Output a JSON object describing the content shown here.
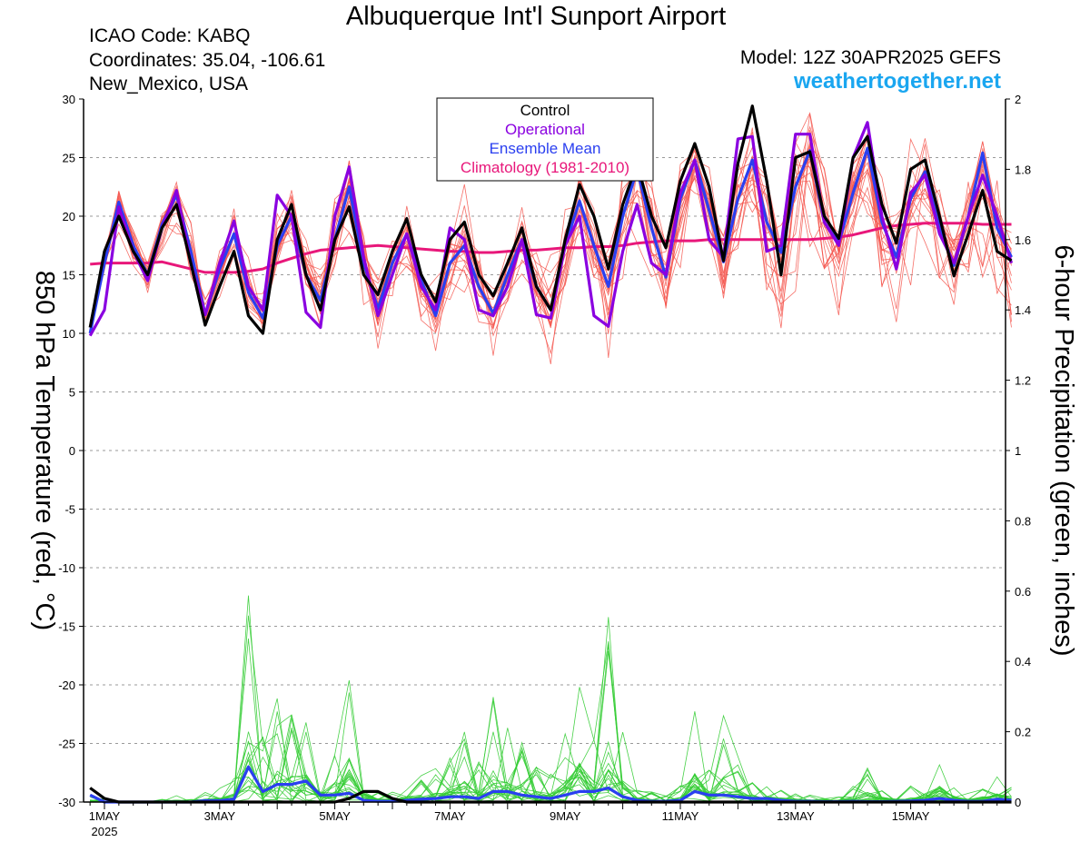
{
  "header": {
    "title": "Albuquerque Int'l Sunport Airport",
    "icao": "ICAO Code: KABQ",
    "coordinates": "Coordinates: 35.04, -106.61",
    "location": "New_Mexico, USA",
    "model": "Model: 12Z 30APR2025 GEFS",
    "website": "weathertogether.net"
  },
  "chart_data": {
    "type": "line",
    "title": "Albuquerque Int'l Sunport Airport",
    "ylabel_left": "850 hPa Temperature (red, °C)",
    "ylabel_right": "6-hour Precipitation (green, inches)",
    "ylim_left": [
      -30,
      30
    ],
    "ylim_right": [
      0,
      2
    ],
    "yticks_left": [
      "30",
      "25",
      "20",
      "15",
      "10",
      "5",
      "0",
      "-5",
      "-10",
      "-15",
      "-20",
      "-25",
      "-30"
    ],
    "yticks_right": [
      "2",
      "1.8",
      "1.6",
      "1.4",
      "1.2",
      "1",
      "0.8",
      "0.6",
      "0.4",
      "0.2",
      "0"
    ],
    "x_unit_note": "days after 1MAY 2025 00Z, 6-hour steps",
    "x_tick_labels": [
      {
        "label": "1MAY",
        "day": 0
      },
      {
        "label": "3MAY",
        "day": 2
      },
      {
        "label": "5MAY",
        "day": 4
      },
      {
        "label": "7MAY",
        "day": 6
      },
      {
        "label": "9MAY",
        "day": 8
      },
      {
        "label": "11MAY",
        "day": 10
      },
      {
        "label": "13MAY",
        "day": 12
      },
      {
        "label": "15MAY",
        "day": 14
      }
    ],
    "x_year_label": "2025",
    "grid": true,
    "legend": {
      "position": "top-center",
      "entries": [
        {
          "label": "Control",
          "color": "#000000"
        },
        {
          "label": "Operational",
          "color": "#8a00e0"
        },
        {
          "label": "Ensemble Mean",
          "color": "#2a3ff0"
        },
        {
          "label": "Climatology (1981-2010)",
          "color": "#e8177a"
        }
      ]
    },
    "x_start_day": -0.25,
    "x_step_days": 0.25,
    "series": [
      {
        "name": "Control",
        "color": "#000000",
        "values": [
          10.5,
          17,
          20,
          17,
          15,
          19,
          21,
          16,
          10.7,
          14,
          17,
          11.5,
          10,
          18,
          21,
          15,
          12,
          18,
          20.8,
          15,
          13.3,
          17,
          19.8,
          15,
          12.7,
          18,
          19.5,
          15,
          13.2,
          16,
          19,
          14,
          12,
          18,
          22.7,
          20,
          15.5,
          21,
          24.5,
          20,
          17.3,
          23,
          26.2,
          22.5,
          16.2,
          24.5,
          29.4,
          23,
          15,
          25,
          25.5,
          20,
          18.1,
          25,
          26.8,
          21,
          17.7,
          24,
          24.8,
          20,
          14.9,
          18.5,
          22.2,
          17,
          16.2
        ]
      },
      {
        "name": "Operational",
        "color": "#8a00e0",
        "values": [
          9.8,
          12,
          20.8,
          17,
          14.5,
          19,
          22.2,
          16,
          11.6,
          16,
          19.6,
          14,
          12,
          21.8,
          20,
          11.8,
          10.5,
          20,
          24.2,
          16.5,
          11.5,
          15,
          18.5,
          14,
          12,
          19,
          18,
          12,
          11.5,
          14,
          18,
          11.6,
          11.3,
          17.5,
          20,
          11.5,
          10.6,
          17,
          21,
          16,
          15,
          22,
          24.8,
          18,
          16.5,
          26.6,
          26.8,
          17,
          17.5,
          27,
          27,
          19.5,
          17.5,
          25,
          28,
          20,
          15.5,
          22,
          23.5,
          18.5,
          16,
          20,
          23.5,
          20,
          16
        ]
      },
      {
        "name": "Ensemble Mean",
        "color": "#2a3ff0",
        "values": [
          10,
          16,
          21.2,
          17.5,
          15,
          19.3,
          21.8,
          17,
          11.6,
          15.5,
          18.5,
          13.5,
          11.3,
          17.5,
          20,
          15,
          12.8,
          18,
          22.5,
          16,
          12.1,
          16,
          18.5,
          14.5,
          11.5,
          16,
          17.5,
          14,
          11.7,
          15,
          18,
          14,
          12,
          17.5,
          21.3,
          17.5,
          14,
          20,
          24,
          19,
          14.8,
          21.5,
          24.8,
          20.5,
          16.1,
          21.5,
          24.8,
          19.5,
          16.9,
          22.5,
          25.6,
          19.5,
          17.7,
          22,
          25.8,
          19.5,
          16.5,
          21.5,
          23.8,
          19,
          15.8,
          20,
          25.4,
          19,
          16.5
        ]
      },
      {
        "name": "Climatology (1981-2010)",
        "color": "#e8177a",
        "values": [
          15.9,
          16,
          16,
          16,
          16,
          16.1,
          15.8,
          15.5,
          15.2,
          15.2,
          15.2,
          15.3,
          15.5,
          16,
          16.4,
          16.8,
          17.1,
          17.2,
          17.3,
          17.4,
          17.5,
          17.4,
          17.3,
          17.2,
          17.1,
          17,
          17,
          16.9,
          16.9,
          17,
          17.1,
          17.1,
          17.2,
          17.3,
          17.3,
          17.4,
          17.4,
          17.5,
          17.7,
          17.8,
          17.9,
          17.9,
          17.9,
          18,
          18,
          18,
          18,
          18,
          18,
          18,
          18,
          18.1,
          18.2,
          18.4,
          18.7,
          19,
          19.2,
          19.3,
          19.4,
          19.4,
          19.4,
          19.4,
          19.3,
          19.3,
          19.3
        ]
      },
      {
        "name": "Control precipitation",
        "axis": "right",
        "color": "#000000",
        "values": [
          0.04,
          0.01,
          0,
          0,
          0,
          0,
          0,
          0,
          0,
          0,
          0,
          0,
          0,
          0,
          0,
          0,
          0,
          0,
          0.01,
          0.03,
          0.03,
          0.01,
          0,
          0,
          0,
          0,
          0,
          0,
          0,
          0,
          0,
          0,
          0,
          0,
          0,
          0,
          0,
          0,
          0,
          0,
          0,
          0,
          0,
          0,
          0,
          0,
          0,
          0,
          0,
          0,
          0,
          0,
          0,
          0,
          0,
          0,
          0,
          0,
          0,
          0,
          0,
          0,
          0,
          0,
          0
        ]
      },
      {
        "name": "Ensemble Mean precipitation",
        "axis": "right",
        "color": "#2a3ff0",
        "values": [
          0.02,
          0,
          0,
          0,
          0,
          0,
          0,
          0,
          0.004,
          0.004,
          0.008,
          0.1,
          0.03,
          0.05,
          0.05,
          0.06,
          0.02,
          0.02,
          0.025,
          0.005,
          0.002,
          0.002,
          0.005,
          0.008,
          0.01,
          0.015,
          0.015,
          0.01,
          0.03,
          0.03,
          0.02,
          0.015,
          0.01,
          0.02,
          0.03,
          0.03,
          0.04,
          0.015,
          0.005,
          0.002,
          0.002,
          0.005,
          0.03,
          0.02,
          0.02,
          0.015,
          0.01,
          0.01,
          0.005,
          0.002,
          0.002,
          0.001,
          0.001,
          0.002,
          0.001,
          0.001,
          0.002,
          0.003,
          0.005,
          0.01,
          0.005,
          0.002,
          0.002,
          0.008,
          0.005
        ]
      }
    ],
    "ensemble_temperature_members": {
      "color": "#f4564e",
      "member_count": 20,
      "spread_low": [
        10,
        14,
        17,
        15,
        13,
        16,
        18,
        13,
        10,
        12,
        15,
        11,
        9,
        15,
        17,
        11,
        9.5,
        15,
        17.5,
        12,
        6.5,
        12,
        14,
        10,
        8,
        12,
        13,
        9,
        6.5,
        10,
        13,
        9,
        7,
        10,
        14.5,
        10,
        7,
        11,
        15,
        11,
        9.5,
        14,
        17,
        13,
        10,
        14,
        17,
        12,
        8.8,
        13,
        16,
        12,
        10,
        13,
        15,
        11,
        8.8,
        10,
        12,
        10,
        9,
        11,
        12,
        10,
        8.5
      ],
      "spread_high": [
        12,
        19,
        23.5,
        20,
        17,
        21,
        24,
        20,
        14,
        18,
        22,
        17,
        14,
        21,
        23.5,
        19,
        16,
        22,
        26.5,
        21,
        16,
        20,
        23,
        19,
        16,
        21,
        24,
        19,
        15,
        19,
        23,
        19,
        17,
        22,
        26,
        23,
        19,
        25,
        28,
        24,
        20,
        26,
        28.5,
        25,
        21,
        27,
        29.5,
        26,
        20,
        27,
        30,
        25,
        21,
        27,
        30,
        25,
        21,
        27,
        29,
        24,
        19,
        24,
        29.5,
        26,
        21
      ]
    },
    "ensemble_precipitation_members": {
      "color": "#33cc33",
      "member_count": 20,
      "spread_high": [
        0.02,
        0.01,
        0,
        0,
        0,
        0.01,
        0.02,
        0.01,
        0.03,
        0.04,
        0.08,
        0.68,
        0.2,
        0.3,
        0.26,
        0.28,
        0.1,
        0.2,
        0.42,
        0.1,
        0.03,
        0.03,
        0.05,
        0.08,
        0.1,
        0.15,
        0.2,
        0.12,
        0.3,
        0.22,
        0.18,
        0.1,
        0.08,
        0.2,
        0.4,
        0.2,
        0.6,
        0.2,
        0.04,
        0.03,
        0.02,
        0.05,
        0.27,
        0.1,
        0.26,
        0.14,
        0.08,
        0.06,
        0.04,
        0.03,
        0.02,
        0.01,
        0.02,
        0.05,
        0.1,
        0.05,
        0.03,
        0.05,
        0.08,
        0.15,
        0.06,
        0.03,
        0.05,
        0.08,
        0.06
      ]
    }
  }
}
